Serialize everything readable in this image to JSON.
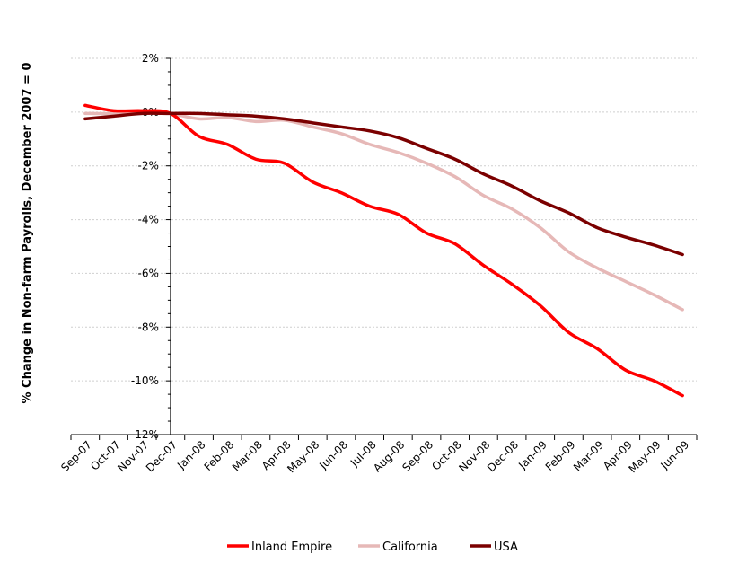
{
  "chart_data": {
    "type": "line",
    "title": "",
    "xlabel": "",
    "ylabel": "% Change in Non-farm Payrolls, December 2007 = 0",
    "categories": [
      "Sep-07",
      "Oct-07",
      "Nov-07",
      "Dec-07",
      "Jan-08",
      "Feb-08",
      "Mar-08",
      "Apr-08",
      "May-08",
      "Jun-08",
      "Jul-08",
      "Aug-08",
      "Sep-08",
      "Oct-08",
      "Nov-08",
      "Dec-08",
      "Jan-09",
      "Feb-09",
      "Mar-09",
      "Apr-09",
      "May-09",
      "Jun-09"
    ],
    "y_tick_labels": [
      "2%",
      "0%",
      "-2%",
      "-4%",
      "-6%",
      "-8%",
      "-10%",
      "-12%"
    ],
    "y_ticks": [
      2,
      0,
      -2,
      -4,
      -6,
      -8,
      -10,
      -12
    ],
    "ylim": [
      -12,
      2
    ],
    "grid": "horizontal",
    "legend_position": "bottom",
    "series": [
      {
        "name": "Inland Empire",
        "color": "#ff0000",
        "values": [
          0.25,
          0.05,
          0.05,
          -0.05,
          -0.9,
          -1.2,
          -1.75,
          -1.9,
          -2.6,
          -3.0,
          -3.5,
          -3.8,
          -4.5,
          -4.9,
          -5.7,
          -6.4,
          -7.2,
          -8.2,
          -8.8,
          -9.6,
          -10.0,
          -10.55
        ]
      },
      {
        "name": "California",
        "color": "#e6b8b7",
        "values": [
          -0.05,
          -0.05,
          0.05,
          -0.05,
          -0.25,
          -0.2,
          -0.35,
          -0.3,
          -0.55,
          -0.8,
          -1.2,
          -1.5,
          -1.9,
          -2.4,
          -3.1,
          -3.6,
          -4.3,
          -5.2,
          -5.8,
          -6.3,
          -6.8,
          -7.35
        ]
      },
      {
        "name": "USA",
        "color": "#7b0000",
        "values": [
          -0.25,
          -0.15,
          -0.05,
          -0.05,
          -0.05,
          -0.1,
          -0.15,
          -0.25,
          -0.4,
          -0.55,
          -0.7,
          -0.95,
          -1.35,
          -1.75,
          -2.3,
          -2.75,
          -3.3,
          -3.75,
          -4.3,
          -4.65,
          -4.95,
          -5.3
        ]
      }
    ]
  }
}
